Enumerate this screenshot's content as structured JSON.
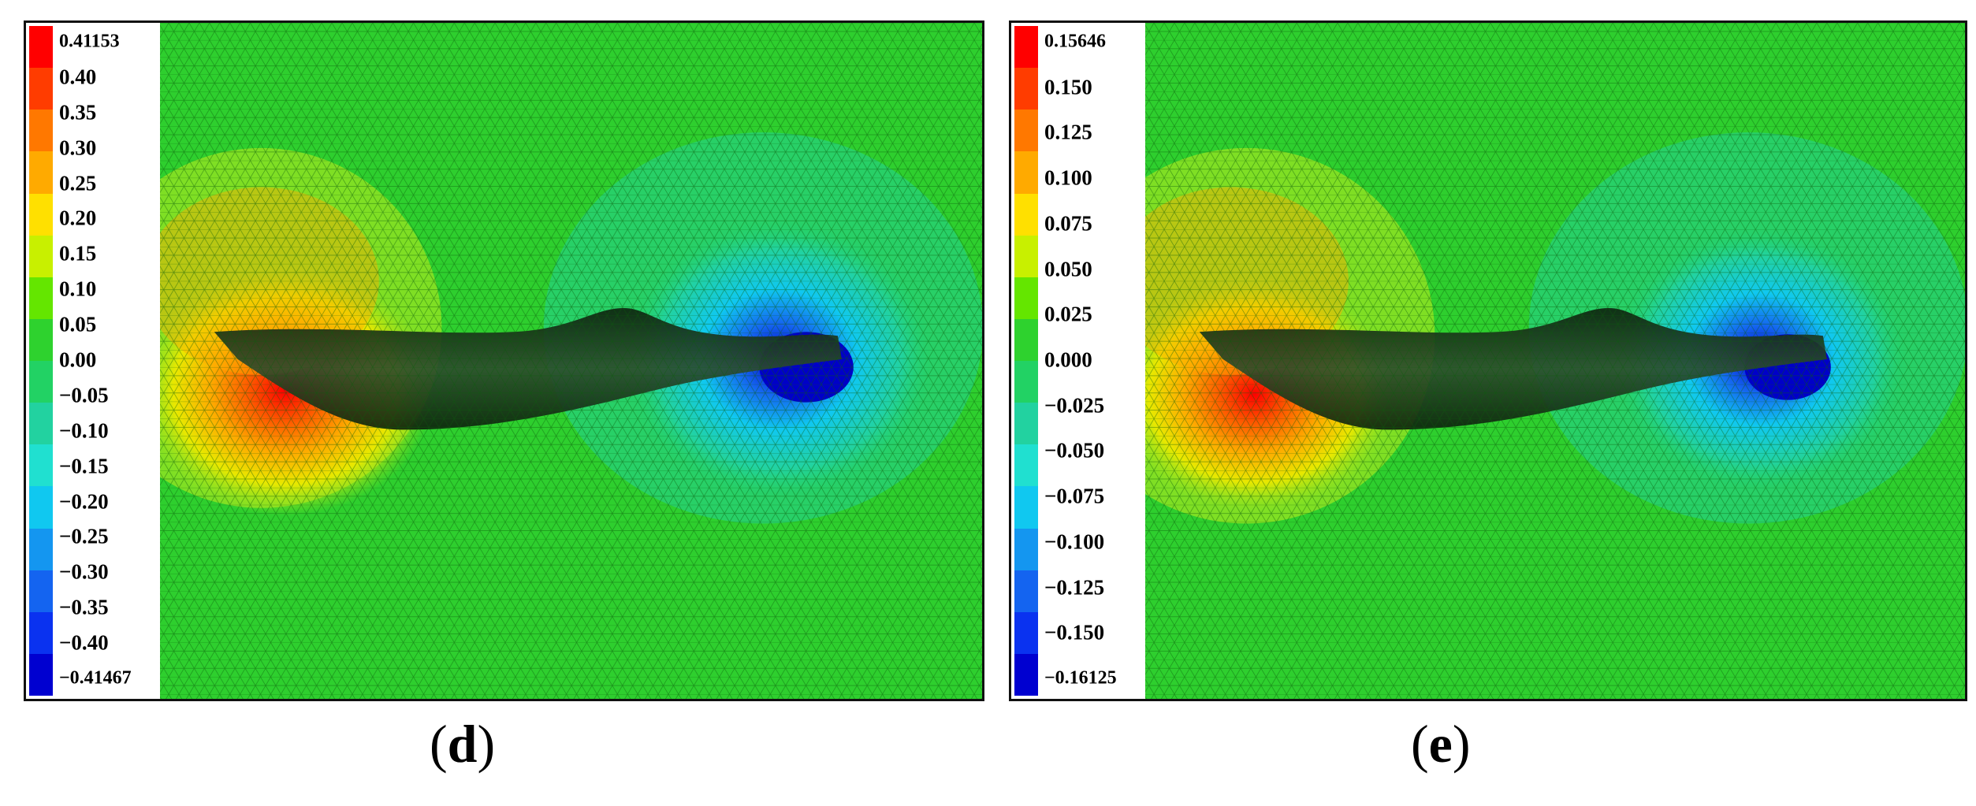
{
  "panels": [
    {
      "id": "d",
      "caption_letter": "d",
      "colormap": [
        "#ff0000",
        "#ff3c00",
        "#ff7800",
        "#ffaa00",
        "#ffe000",
        "#c8f000",
        "#64e600",
        "#2ed22e",
        "#22d264",
        "#22d2a0",
        "#20e0d0",
        "#10c8f0",
        "#1496f0",
        "#1464f0",
        "#0a32f0",
        "#0000d0"
      ],
      "legend_labels": [
        "0.41153",
        "0.40",
        "0.35",
        "0.30",
        "0.25",
        "0.20",
        "0.15",
        "0.10",
        "0.05",
        "0.00",
        "−0.05",
        "−0.10",
        "−0.15",
        "−0.20",
        "−0.25",
        "−0.30",
        "−0.35",
        "−0.40",
        "−0.41467"
      ]
    },
    {
      "id": "e",
      "caption_letter": "e",
      "colormap": [
        "#ff0000",
        "#ff3c00",
        "#ff7800",
        "#ffaa00",
        "#ffe000",
        "#c8f000",
        "#64e600",
        "#2ed22e",
        "#22d264",
        "#22d2a0",
        "#20e0d0",
        "#10c8f0",
        "#1496f0",
        "#1464f0",
        "#0a32f0",
        "#0000d0"
      ],
      "legend_labels": [
        "0.15646",
        "0.150",
        "0.125",
        "0.100",
        "0.075",
        "0.050",
        "0.025",
        "0.000",
        "−0.025",
        "−0.050",
        "−0.075",
        "−0.100",
        "−0.125",
        "−0.150",
        "−0.16125"
      ]
    }
  ],
  "background_color": "#2ecf2e",
  "mesh_line_color": "#0a5a0a"
}
